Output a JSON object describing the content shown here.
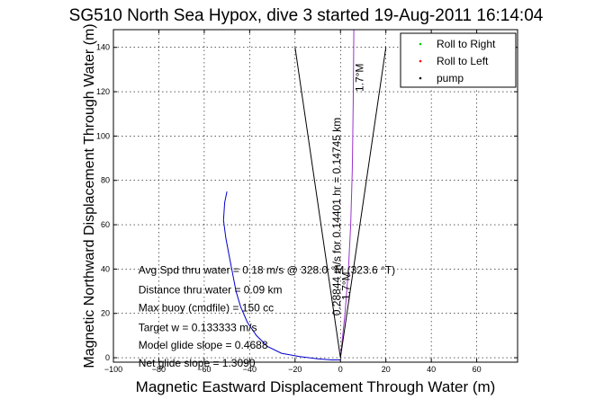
{
  "chart_data": {
    "type": "line",
    "title": "SG510 North Sea Hypox, dive 3 started 19-Aug-2011 16:14:04",
    "xlabel": "Magnetic Eastward Displacement Through Water (m)",
    "ylabel": "Magnetic Northward Displacement Through Water (m)",
    "xlim": [
      -100,
      78
    ],
    "ylim": [
      -2,
      148
    ],
    "xticks": [
      -100,
      -80,
      -60,
      -40,
      -20,
      0,
      20,
      40,
      60
    ],
    "yticks": [
      0,
      20,
      40,
      60,
      80,
      100,
      120,
      140
    ],
    "grid": true,
    "legend_position": "top-right",
    "legend": [
      {
        "label": "Roll to Right",
        "color": "#00cc00",
        "marker": "dot"
      },
      {
        "label": "Roll to Left",
        "color": "#ff0000",
        "marker": "dot"
      },
      {
        "label": "pump",
        "color": "#000000",
        "marker": "dot"
      }
    ],
    "series": [
      {
        "color": "#0000cc",
        "x": [
          -50,
          -51,
          -51.5,
          -50.5,
          -49,
          -47.5,
          -46,
          -44,
          -41,
          -37,
          -32,
          -26,
          -18,
          -10,
          -4,
          0
        ],
        "y": [
          75,
          70,
          62,
          54,
          46,
          38,
          30,
          23,
          16,
          10,
          5,
          2,
          0.5,
          -0.5,
          -1,
          -1
        ]
      },
      {
        "color": "#9933cc",
        "x": [
          0,
          2,
          3.5,
          4.5,
          5.2,
          5.6,
          5.9
        ],
        "y": [
          0,
          20,
          40,
          60,
          85,
          115,
          148
        ]
      },
      {
        "color": "#000000",
        "x": [
          -20,
          0,
          20
        ],
        "y": [
          140,
          0,
          140
        ]
      }
    ],
    "annotations": [
      {
        "text": "Avg Spd thru water =  0.18 m/s @ 328.0    °M (323.6 °T)",
        "x": -89,
        "y": 38,
        "rotation": 0
      },
      {
        "text": "Distance thru water =  0.09 km",
        "x": -89,
        "y": 29,
        "rotation": 0
      },
      {
        "text": "Max buoy (cmdfile) = 150 cc",
        "x": -89,
        "y": 21,
        "rotation": 0
      },
      {
        "text": "Target w = 0.133333 m/s",
        "x": -89,
        "y": 12,
        "rotation": 0
      },
      {
        "text": "Model glide slope = 0.4688",
        "x": -89,
        "y": 4,
        "rotation": 0
      },
      {
        "text": "Net glide slope = 1.3090",
        "x": -89,
        "y": -4,
        "rotation": 0
      },
      {
        "text": "0.28844 m/s for 0.14401 hr = 0.14745 km",
        "x": 0,
        "y": 19,
        "rotation": -90
      },
      {
        "text": "1.7°M",
        "x": 10,
        "y": 120,
        "rotation": -90
      },
      {
        "text": "1.7°M",
        "x": 4,
        "y": 26,
        "rotation": -90
      }
    ]
  }
}
